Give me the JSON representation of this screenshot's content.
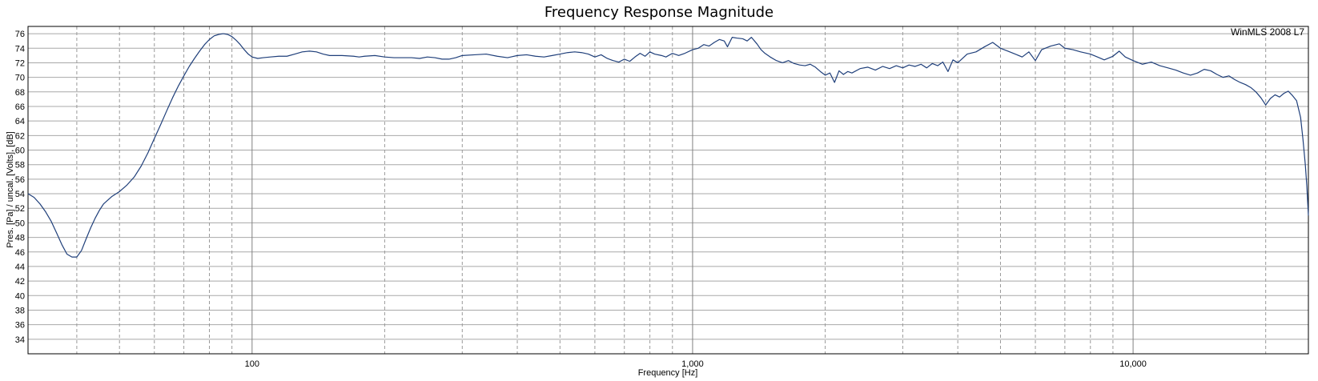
{
  "chart_data": {
    "type": "line",
    "title": "Frequency Response Magnitude",
    "xlabel": "Frequency [Hz]",
    "ylabel": "Pres. [Pa] / uncal. [Volts], [dB]",
    "watermark": "WinMLS 2008 L7",
    "x_scale": "log",
    "xlim": [
      31,
      25000
    ],
    "ylim": [
      32,
      77
    ],
    "grid": true,
    "x_major_ticks": [
      100,
      1000,
      10000
    ],
    "x_tick_labels": [
      "100",
      "1,000",
      "10,000"
    ],
    "y_ticks": [
      34,
      36,
      38,
      40,
      42,
      44,
      46,
      48,
      50,
      52,
      54,
      56,
      58,
      60,
      62,
      64,
      66,
      68,
      70,
      72,
      74,
      76
    ],
    "line_color": "#1f3f7a",
    "series": [
      {
        "points": [
          [
            31,
            54.0
          ],
          [
            32,
            53.5
          ],
          [
            33,
            52.6
          ],
          [
            34,
            51.5
          ],
          [
            35,
            50.2
          ],
          [
            36,
            48.6
          ],
          [
            37,
            47.0
          ],
          [
            38,
            45.7
          ],
          [
            39,
            45.3
          ],
          [
            40,
            45.3
          ],
          [
            41,
            46.2
          ],
          [
            42,
            47.8
          ],
          [
            43,
            49.3
          ],
          [
            44,
            50.6
          ],
          [
            45,
            51.7
          ],
          [
            46,
            52.6
          ],
          [
            48,
            53.6
          ],
          [
            50,
            54.3
          ],
          [
            52,
            55.2
          ],
          [
            54,
            56.3
          ],
          [
            56,
            57.8
          ],
          [
            58,
            59.6
          ],
          [
            60,
            61.6
          ],
          [
            62,
            63.5
          ],
          [
            64,
            65.4
          ],
          [
            66,
            67.2
          ],
          [
            68,
            68.8
          ],
          [
            70,
            70.2
          ],
          [
            72,
            71.5
          ],
          [
            74,
            72.6
          ],
          [
            76,
            73.6
          ],
          [
            78,
            74.5
          ],
          [
            80,
            75.2
          ],
          [
            82,
            75.7
          ],
          [
            84,
            75.9
          ],
          [
            86,
            76.0
          ],
          [
            88,
            75.9
          ],
          [
            90,
            75.6
          ],
          [
            92,
            75.1
          ],
          [
            94,
            74.5
          ],
          [
            96,
            73.8
          ],
          [
            98,
            73.2
          ],
          [
            100,
            72.8
          ],
          [
            103,
            72.6
          ],
          [
            106,
            72.7
          ],
          [
            110,
            72.8
          ],
          [
            115,
            72.9
          ],
          [
            120,
            72.9
          ],
          [
            125,
            73.2
          ],
          [
            130,
            73.5
          ],
          [
            135,
            73.6
          ],
          [
            140,
            73.5
          ],
          [
            145,
            73.2
          ],
          [
            150,
            73.0
          ],
          [
            160,
            73.0
          ],
          [
            170,
            72.9
          ],
          [
            175,
            72.8
          ],
          [
            180,
            72.9
          ],
          [
            190,
            73.0
          ],
          [
            200,
            72.8
          ],
          [
            210,
            72.7
          ],
          [
            220,
            72.7
          ],
          [
            230,
            72.7
          ],
          [
            240,
            72.6
          ],
          [
            250,
            72.8
          ],
          [
            260,
            72.7
          ],
          [
            270,
            72.5
          ],
          [
            280,
            72.5
          ],
          [
            290,
            72.7
          ],
          [
            300,
            73.0
          ],
          [
            320,
            73.1
          ],
          [
            340,
            73.2
          ],
          [
            360,
            72.9
          ],
          [
            380,
            72.7
          ],
          [
            400,
            73.0
          ],
          [
            420,
            73.1
          ],
          [
            440,
            72.9
          ],
          [
            460,
            72.8
          ],
          [
            480,
            73.0
          ],
          [
            500,
            73.2
          ],
          [
            520,
            73.4
          ],
          [
            540,
            73.5
          ],
          [
            560,
            73.4
          ],
          [
            580,
            73.2
          ],
          [
            600,
            72.8
          ],
          [
            620,
            73.1
          ],
          [
            640,
            72.6
          ],
          [
            660,
            72.3
          ],
          [
            680,
            72.1
          ],
          [
            700,
            72.5
          ],
          [
            720,
            72.2
          ],
          [
            740,
            72.8
          ],
          [
            760,
            73.3
          ],
          [
            780,
            72.9
          ],
          [
            800,
            73.5
          ],
          [
            820,
            73.2
          ],
          [
            850,
            73.0
          ],
          [
            870,
            72.8
          ],
          [
            900,
            73.3
          ],
          [
            930,
            73.0
          ],
          [
            960,
            73.3
          ],
          [
            1000,
            73.8
          ],
          [
            1030,
            74.0
          ],
          [
            1060,
            74.5
          ],
          [
            1090,
            74.3
          ],
          [
            1120,
            74.8
          ],
          [
            1150,
            75.2
          ],
          [
            1180,
            75.0
          ],
          [
            1200,
            74.2
          ],
          [
            1230,
            75.5
          ],
          [
            1260,
            75.4
          ],
          [
            1300,
            75.3
          ],
          [
            1330,
            75.0
          ],
          [
            1360,
            75.5
          ],
          [
            1400,
            74.6
          ],
          [
            1430,
            73.8
          ],
          [
            1460,
            73.3
          ],
          [
            1500,
            72.8
          ],
          [
            1550,
            72.3
          ],
          [
            1600,
            72.0
          ],
          [
            1650,
            72.3
          ],
          [
            1700,
            71.9
          ],
          [
            1750,
            71.7
          ],
          [
            1800,
            71.6
          ],
          [
            1850,
            71.8
          ],
          [
            1900,
            71.4
          ],
          [
            1950,
            70.8
          ],
          [
            2000,
            70.3
          ],
          [
            2050,
            70.6
          ],
          [
            2100,
            69.3
          ],
          [
            2150,
            70.9
          ],
          [
            2200,
            70.4
          ],
          [
            2250,
            70.8
          ],
          [
            2300,
            70.6
          ],
          [
            2400,
            71.2
          ],
          [
            2500,
            71.4
          ],
          [
            2600,
            71.0
          ],
          [
            2700,
            71.5
          ],
          [
            2800,
            71.2
          ],
          [
            2900,
            71.6
          ],
          [
            3000,
            71.3
          ],
          [
            3100,
            71.7
          ],
          [
            3200,
            71.5
          ],
          [
            3300,
            71.8
          ],
          [
            3400,
            71.3
          ],
          [
            3500,
            71.9
          ],
          [
            3600,
            71.6
          ],
          [
            3700,
            72.1
          ],
          [
            3800,
            70.8
          ],
          [
            3900,
            72.4
          ],
          [
            4000,
            72.0
          ],
          [
            4200,
            73.2
          ],
          [
            4400,
            73.5
          ],
          [
            4600,
            74.2
          ],
          [
            4800,
            74.8
          ],
          [
            5000,
            74.0
          ],
          [
            5200,
            73.6
          ],
          [
            5400,
            73.2
          ],
          [
            5600,
            72.8
          ],
          [
            5800,
            73.5
          ],
          [
            6000,
            72.3
          ],
          [
            6200,
            73.8
          ],
          [
            6500,
            74.3
          ],
          [
            6800,
            74.6
          ],
          [
            7000,
            74.0
          ],
          [
            7300,
            73.8
          ],
          [
            7600,
            73.5
          ],
          [
            8000,
            73.2
          ],
          [
            8300,
            72.8
          ],
          [
            8600,
            72.4
          ],
          [
            9000,
            72.9
          ],
          [
            9300,
            73.6
          ],
          [
            9600,
            72.8
          ],
          [
            10000,
            72.3
          ],
          [
            10500,
            71.8
          ],
          [
            11000,
            72.1
          ],
          [
            11500,
            71.6
          ],
          [
            12000,
            71.3
          ],
          [
            12500,
            71.0
          ],
          [
            13000,
            70.6
          ],
          [
            13500,
            70.3
          ],
          [
            14000,
            70.6
          ],
          [
            14500,
            71.1
          ],
          [
            15000,
            70.9
          ],
          [
            15500,
            70.4
          ],
          [
            16000,
            70.0
          ],
          [
            16500,
            70.2
          ],
          [
            17000,
            69.7
          ],
          [
            17500,
            69.3
          ],
          [
            18000,
            69.0
          ],
          [
            18500,
            68.6
          ],
          [
            19000,
            68.0
          ],
          [
            19500,
            67.2
          ],
          [
            20000,
            66.2
          ],
          [
            20500,
            67.1
          ],
          [
            21000,
            67.6
          ],
          [
            21500,
            67.3
          ],
          [
            22000,
            67.8
          ],
          [
            22500,
            68.1
          ],
          [
            23000,
            67.5
          ],
          [
            23500,
            66.8
          ],
          [
            24000,
            64.5
          ],
          [
            24300,
            61.5
          ],
          [
            24600,
            58.0
          ],
          [
            24800,
            55.0
          ],
          [
            25000,
            51.0
          ]
        ]
      }
    ]
  }
}
